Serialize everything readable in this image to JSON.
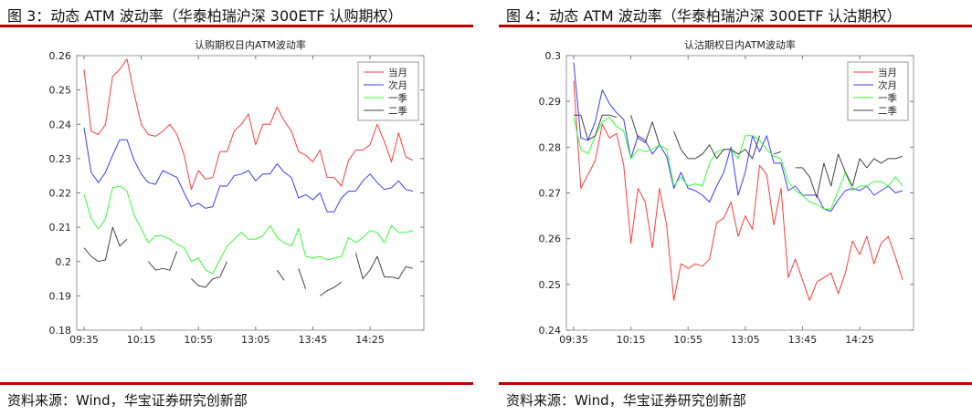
{
  "panels": [
    {
      "figure_title": "图 3：动态 ATM 波动率（华泰柏瑞沪深 300ETF 认购期权）",
      "source": "资料来源：Wind，华宝证券研究创新部"
    },
    {
      "figure_title": "图 4：动态 ATM 波动率（华泰柏瑞沪深 300ETF 认沽期权）",
      "source": "资料来源：Wind，华宝证券研究创新部"
    }
  ],
  "colors": {
    "当月": "#ff3b3b",
    "次月": "#3b3bff",
    "一季": "#33ff33",
    "二季": "#444444",
    "rule": "#c00000"
  },
  "chart_data": [
    {
      "type": "line",
      "title": "认购期权日内ATM波动率",
      "xlabel": "",
      "ylabel": "",
      "x_tick_labels": [
        "09:35",
        "10:15",
        "10:55",
        "13:05",
        "13:45",
        "14:25"
      ],
      "x_tick_index": [
        0,
        8,
        16,
        24,
        32,
        40
      ],
      "ylim": [
        0.18,
        0.26
      ],
      "y_ticks": [
        "0.18",
        "0.19",
        "0.2",
        "0.21",
        "0.22",
        "0.23",
        "0.24",
        "0.25",
        "0.26"
      ],
      "legend_position": "top-right",
      "series": [
        {
          "name": "当月",
          "values": [
            0.256,
            0.238,
            0.237,
            0.24,
            0.254,
            0.256,
            0.259,
            0.249,
            0.24,
            0.237,
            0.2365,
            0.238,
            0.24,
            0.237,
            0.231,
            0.221,
            0.2265,
            0.224,
            0.2245,
            0.232,
            0.232,
            0.238,
            0.24,
            0.243,
            0.234,
            0.24,
            0.24,
            0.245,
            0.241,
            0.238,
            0.232,
            0.231,
            0.229,
            0.2325,
            0.2245,
            0.2245,
            0.222,
            0.2295,
            0.2325,
            0.2325,
            0.234,
            0.24,
            0.235,
            0.229,
            0.2375,
            0.2305,
            0.2295
          ]
        },
        {
          "name": "次月",
          "values": [
            0.239,
            0.226,
            0.223,
            0.226,
            0.231,
            0.2355,
            0.2355,
            0.2295,
            0.2255,
            0.223,
            0.2225,
            0.2265,
            0.2255,
            0.2245,
            0.22,
            0.216,
            0.217,
            0.2155,
            0.216,
            0.222,
            0.222,
            0.225,
            0.2255,
            0.2265,
            0.2235,
            0.2255,
            0.2255,
            0.2285,
            0.226,
            0.2245,
            0.2185,
            0.2195,
            0.218,
            0.22,
            0.2145,
            0.2145,
            0.2185,
            0.2205,
            0.2205,
            0.2235,
            0.2255,
            0.223,
            0.221,
            0.2215,
            0.2235,
            0.221,
            0.2205
          ]
        },
        {
          "name": "一季",
          "values": [
            0.2195,
            0.2125,
            0.2095,
            0.2125,
            0.2215,
            0.222,
            0.2205,
            0.2135,
            0.2095,
            0.2055,
            0.2075,
            0.2075,
            0.2065,
            0.205,
            0.204,
            0.2,
            0.201,
            0.1975,
            0.1965,
            0.2005,
            0.2045,
            0.2065,
            0.2085,
            0.2065,
            0.2065,
            0.2075,
            0.2105,
            0.207,
            0.2055,
            0.2045,
            0.2095,
            0.2015,
            0.201,
            0.2015,
            0.2005,
            0.201,
            0.2015,
            0.207,
            0.2055,
            0.207,
            0.209,
            0.2085,
            0.2055,
            0.2105,
            0.2085,
            0.2085,
            0.209
          ]
        },
        {
          "name": "二季",
          "values": [
            0.204,
            0.2015,
            0.2,
            0.2005,
            0.21,
            0.2045,
            0.2065,
            null,
            null,
            0.2,
            0.1975,
            0.198,
            0.1975,
            0.203,
            null,
            0.195,
            0.193,
            0.1925,
            0.195,
            0.1955,
            0.2,
            null,
            0.199,
            null,
            0.1975,
            null,
            null,
            0.1975,
            0.1945,
            null,
            0.198,
            0.192,
            null,
            0.19,
            0.1915,
            0.1925,
            0.194,
            null,
            0.2025,
            0.195,
            0.1975,
            0.2015,
            0.1955,
            0.1955,
            0.195,
            0.1985,
            0.198
          ]
        }
      ]
    },
    {
      "type": "line",
      "title": "认沽期权日内ATM波动率",
      "xlabel": "",
      "ylabel": "",
      "x_tick_labels": [
        "09:35",
        "10:15",
        "10:55",
        "13:05",
        "13:45",
        "14:25"
      ],
      "x_tick_index": [
        0,
        8,
        16,
        24,
        32,
        40
      ],
      "ylim": [
        0.24,
        0.3
      ],
      "y_ticks": [
        "0.24",
        "0.25",
        "0.26",
        "0.27",
        "0.28",
        "0.29",
        "0.3"
      ],
      "legend_position": "top-right",
      "series": [
        {
          "name": "当月",
          "values": [
            0.2945,
            0.271,
            0.274,
            0.277,
            0.285,
            0.282,
            0.283,
            0.276,
            0.259,
            0.271,
            0.268,
            0.258,
            0.271,
            0.263,
            0.2465,
            0.2545,
            0.2535,
            0.2545,
            0.254,
            0.2555,
            0.2635,
            0.2645,
            0.268,
            0.2605,
            0.265,
            0.262,
            0.276,
            0.274,
            0.263,
            0.271,
            0.2515,
            0.2555,
            0.251,
            0.2465,
            0.2505,
            0.2515,
            0.2525,
            0.248,
            0.2525,
            0.2595,
            0.2565,
            0.2605,
            0.2545,
            0.259,
            0.2605,
            0.256,
            0.251
          ]
        },
        {
          "name": "次月",
          "values": [
            0.2985,
            0.282,
            0.2815,
            0.2855,
            0.2925,
            0.2895,
            0.2875,
            0.286,
            0.2775,
            0.2825,
            0.2815,
            0.2785,
            0.2805,
            0.278,
            0.271,
            0.2745,
            0.271,
            0.2705,
            0.2695,
            0.268,
            0.2715,
            0.2745,
            0.28,
            0.2695,
            0.2745,
            0.2825,
            0.279,
            0.2825,
            0.2765,
            0.2765,
            0.2705,
            0.2715,
            0.2695,
            0.2695,
            0.2695,
            0.2665,
            0.266,
            0.2685,
            0.2705,
            0.271,
            0.2705,
            0.2715,
            0.2695,
            0.2705,
            0.2715,
            0.27,
            0.2705
          ]
        },
        {
          "name": "一季",
          "values": [
            0.2865,
            0.2795,
            0.2785,
            0.2825,
            0.2855,
            0.2865,
            0.2845,
            0.2835,
            0.2775,
            0.2795,
            0.279,
            0.2795,
            0.2805,
            0.2795,
            0.2715,
            0.2735,
            0.2715,
            0.272,
            0.2715,
            0.2765,
            0.279,
            0.2795,
            0.2795,
            0.2775,
            0.2825,
            0.2825,
            0.2815,
            0.2795,
            0.278,
            0.2775,
            0.2725,
            0.2705,
            0.2695,
            0.268,
            0.2675,
            0.2665,
            0.2665,
            0.2705,
            0.2745,
            0.2705,
            0.2715,
            0.2715,
            0.2725,
            0.2725,
            0.2715,
            0.2735,
            0.2715
          ]
        },
        {
          "name": "二季",
          "values": [
            0.287,
            0.287,
            0.2815,
            0.2825,
            0.287,
            0.287,
            0.2865,
            null,
            0.287,
            0.282,
            0.281,
            0.2855,
            0.2805,
            null,
            0.2835,
            0.2795,
            0.2775,
            0.2775,
            0.2785,
            0.2805,
            0.2775,
            0.2795,
            0.2795,
            0.2785,
            0.2795,
            0.2775,
            0.2825,
            null,
            0.2785,
            0.279,
            null,
            0.2755,
            0.2755,
            0.2735,
            0.269,
            0.2765,
            0.2715,
            0.2785,
            0.2745,
            0.2715,
            0.2775,
            0.2755,
            0.2775,
            0.2765,
            0.2775,
            0.2775,
            0.278
          ]
        }
      ]
    }
  ]
}
